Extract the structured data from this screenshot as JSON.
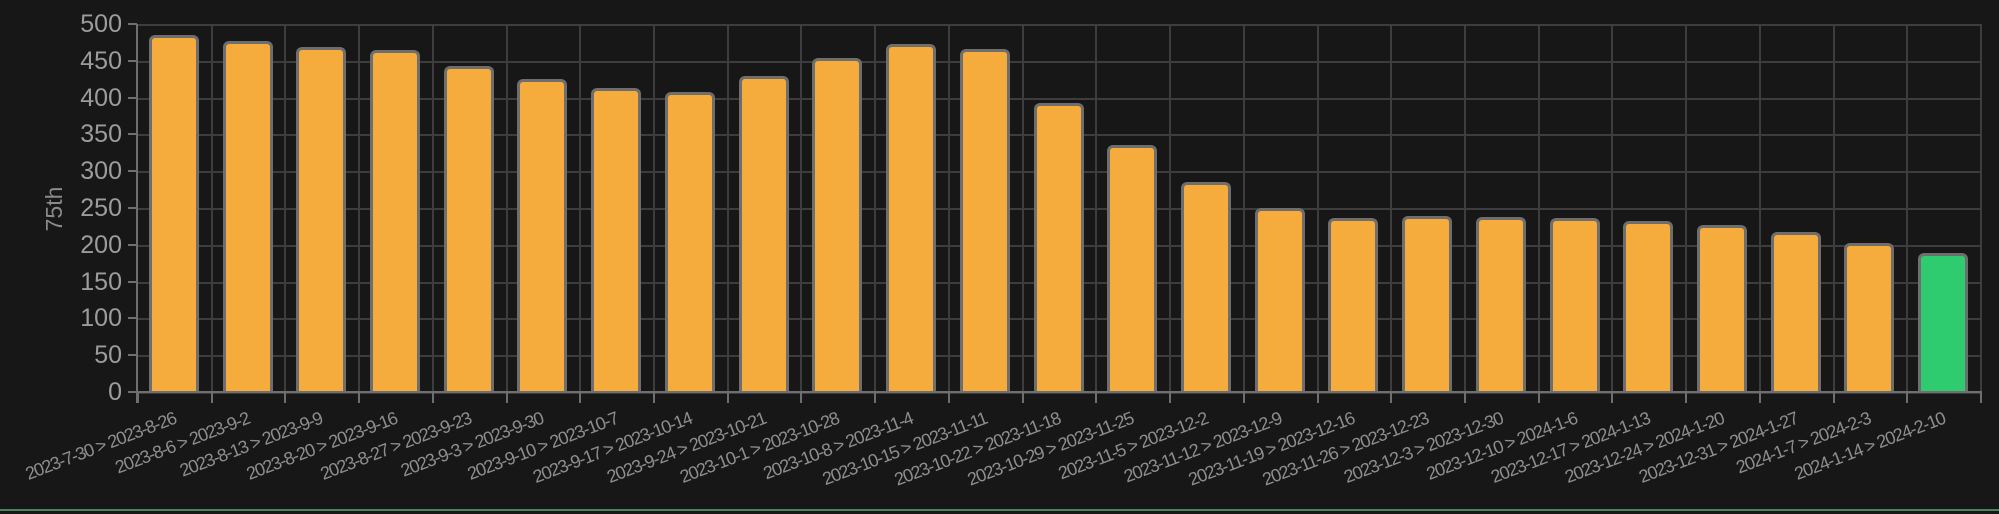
{
  "panel": {
    "y_axis_title": "75th"
  },
  "colors": {
    "background": "#171717",
    "gridline": "#3d3d3d",
    "axis_line": "#6f6f6f",
    "bar_fill": "#f6ac3c",
    "bar_fill_last": "#2ecc6e",
    "bar_border": "#6e6e6e",
    "tick_label": "#9c9c9c",
    "category_label": "#8e8e8e",
    "bottom_border": "#4f8261"
  },
  "chart_data": {
    "type": "bar",
    "title": "",
    "xlabel": "",
    "ylabel": "75th",
    "ylim": [
      0,
      500
    ],
    "ytick_step": 50,
    "ytick_labels": [
      "500",
      "450",
      "400",
      "350",
      "300",
      "250",
      "200",
      "150",
      "100",
      "50",
      "0"
    ],
    "grid": true,
    "legend_position": "none",
    "categories": [
      "2023-7-30 > 2023-8-26",
      "2023-8-6 > 2023-9-2",
      "2023-8-13 > 2023-9-9",
      "2023-8-20 > 2023-9-16",
      "2023-8-27 > 2023-9-23",
      "2023-9-3 > 2023-9-30",
      "2023-9-10 > 2023-10-7",
      "2023-9-17 > 2023-10-14",
      "2023-9-24 > 2023-10-21",
      "2023-10-1 > 2023-10-28",
      "2023-10-8 > 2023-11-4",
      "2023-10-15 > 2023-11-11",
      "2023-10-22 > 2023-11-18",
      "2023-10-29 > 2023-11-25",
      "2023-11-5 > 2023-12-2",
      "2023-11-12 > 2023-12-9",
      "2023-11-19 > 2023-12-16",
      "2023-11-26 > 2023-12-23",
      "2023-12-3 > 2023-12-30",
      "2023-12-10 > 2024-1-6",
      "2023-12-17 > 2024-1-13",
      "2023-12-24 > 2024-1-20",
      "2023-12-31 > 2024-1-27",
      "2024-1-7 > 2024-2-3",
      "2024-1-14 > 2024-2-10"
    ],
    "values": [
      485,
      477,
      469,
      464,
      443,
      425,
      413,
      408,
      429,
      454,
      473,
      466,
      393,
      335,
      285,
      250,
      237,
      239,
      238,
      236,
      233,
      227,
      218,
      202,
      189
    ],
    "bar_color_overrides": {
      "24": "#2ecc6e"
    }
  }
}
